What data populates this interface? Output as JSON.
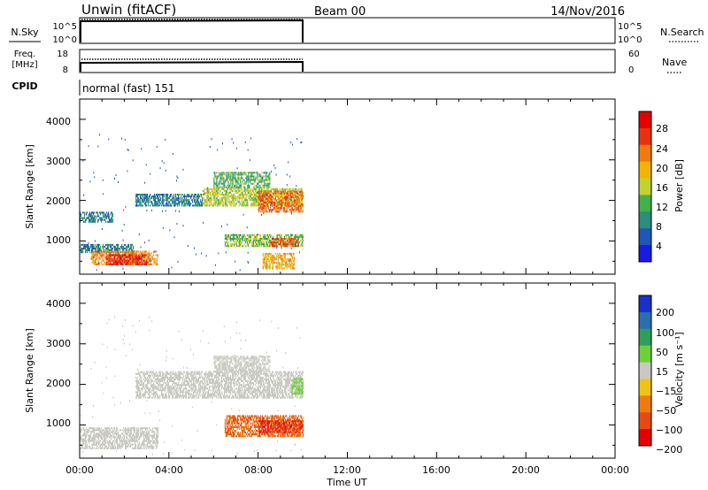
{
  "header": {
    "title": "Unwin (fitACF)",
    "beam": "Beam 00",
    "date": "14/Nov/2016"
  },
  "nsky_panel": {
    "left_label": "N.Sky",
    "left_ticks": [
      "10^5",
      "10^0"
    ],
    "right_ticks": [
      "10^5",
      "10^0"
    ],
    "right_label": "N.Search"
  },
  "freq_panel": {
    "left_label_top": "Freq.",
    "left_label_bottom": "[MHz]",
    "left_ticks": [
      "18",
      "8"
    ],
    "right_ticks": [
      "60",
      "0"
    ],
    "right_label": "Nave"
  },
  "cpid_panel": {
    "label": "CPID",
    "value": "normal (fast) 151"
  },
  "power_panel": {
    "ylabel": "Slant Range [km]",
    "yticks": [
      "4000",
      "3000",
      "2000",
      "1000"
    ],
    "colorbar_label": "Power [dB]",
    "colorbar_ticks": [
      "28",
      "24",
      "20",
      "16",
      "12",
      "8",
      "4"
    ],
    "colors": [
      "#1a1ae6",
      "#1f56b8",
      "#2d8c7c",
      "#43b04a",
      "#c3d233",
      "#f2b400",
      "#f07a10",
      "#e63212",
      "#e60000"
    ]
  },
  "velocity_panel": {
    "ylabel": "Slant Range [km]",
    "yticks": [
      "4000",
      "3000",
      "2000",
      "1000"
    ],
    "colorbar_label": "Velocity [m s⁻¹]",
    "colorbar_ticks": [
      "200",
      "100",
      "50",
      "15",
      "−15",
      "−50",
      "−100",
      "−200"
    ],
    "colors": [
      "#1a2fcc",
      "#2a6fb0",
      "#2f9e5c",
      "#6cd13a",
      "#c8c8c0",
      "#f0c414",
      "#f07a10",
      "#e64a12",
      "#e60000"
    ]
  },
  "x_axis": {
    "label": "Time UT",
    "ticks": [
      "00:00",
      "04:00",
      "08:00",
      "12:00",
      "16:00",
      "20:00",
      "00:00"
    ]
  },
  "chart_data": [
    {
      "type": "heatmap",
      "title": "Power",
      "xlabel": "Time UT",
      "ylabel": "Slant Range [km]",
      "xlim": [
        0,
        24
      ],
      "ylim": [
        180,
        4500
      ],
      "colorbar": {
        "label": "Power [dB]",
        "range": [
          0,
          32
        ]
      },
      "blobs": [
        {
          "t0": 0.0,
          "t1": 2.4,
          "r0": 700,
          "r1": 900,
          "v": 8
        },
        {
          "t0": 0.5,
          "t1": 3.5,
          "r0": 400,
          "r1": 750,
          "v": 22
        },
        {
          "t0": 1.2,
          "t1": 3.0,
          "r0": 400,
          "r1": 650,
          "v": 28
        },
        {
          "t0": 0.0,
          "t1": 1.5,
          "r0": 1450,
          "r1": 1700,
          "v": 8
        },
        {
          "t0": 2.5,
          "t1": 5.5,
          "r0": 1850,
          "r1": 2150,
          "v": 8
        },
        {
          "t0": 5.5,
          "t1": 10.0,
          "r0": 1850,
          "r1": 2300,
          "v": 16
        },
        {
          "t0": 8.0,
          "t1": 10.0,
          "r0": 1700,
          "r1": 2200,
          "v": 24
        },
        {
          "t0": 6.0,
          "t1": 8.5,
          "r0": 2300,
          "r1": 2700,
          "v": 12
        },
        {
          "t0": 6.5,
          "t1": 10.0,
          "r0": 850,
          "r1": 1150,
          "v": 14
        },
        {
          "t0": 8.5,
          "t1": 9.8,
          "r0": 850,
          "r1": 1050,
          "v": 26
        },
        {
          "t0": 8.2,
          "t1": 9.6,
          "r0": 300,
          "r1": 700,
          "v": 20
        }
      ]
    },
    {
      "type": "heatmap",
      "title": "Velocity",
      "xlabel": "Time UT",
      "ylabel": "Slant Range [km]",
      "xlim": [
        0,
        24
      ],
      "ylim": [
        180,
        4500
      ],
      "colorbar": {
        "label": "Velocity [m s⁻¹]",
        "range": [
          -250,
          250
        ]
      },
      "blobs": [
        {
          "t0": 0.0,
          "t1": 3.5,
          "r0": 400,
          "r1": 900,
          "v": 0
        },
        {
          "t0": 2.5,
          "t1": 10.0,
          "r0": 1650,
          "r1": 2300,
          "v": 0
        },
        {
          "t0": 6.0,
          "t1": 8.5,
          "r0": 2300,
          "r1": 2700,
          "v": 0
        },
        {
          "t0": 9.5,
          "t1": 10.0,
          "r0": 1750,
          "r1": 2150,
          "v": 40
        },
        {
          "t0": 6.5,
          "t1": 10.0,
          "r0": 700,
          "r1": 1200,
          "v": -100
        },
        {
          "t0": 8.0,
          "t1": 10.0,
          "r0": 800,
          "r1": 1100,
          "v": -200
        }
      ]
    }
  ]
}
